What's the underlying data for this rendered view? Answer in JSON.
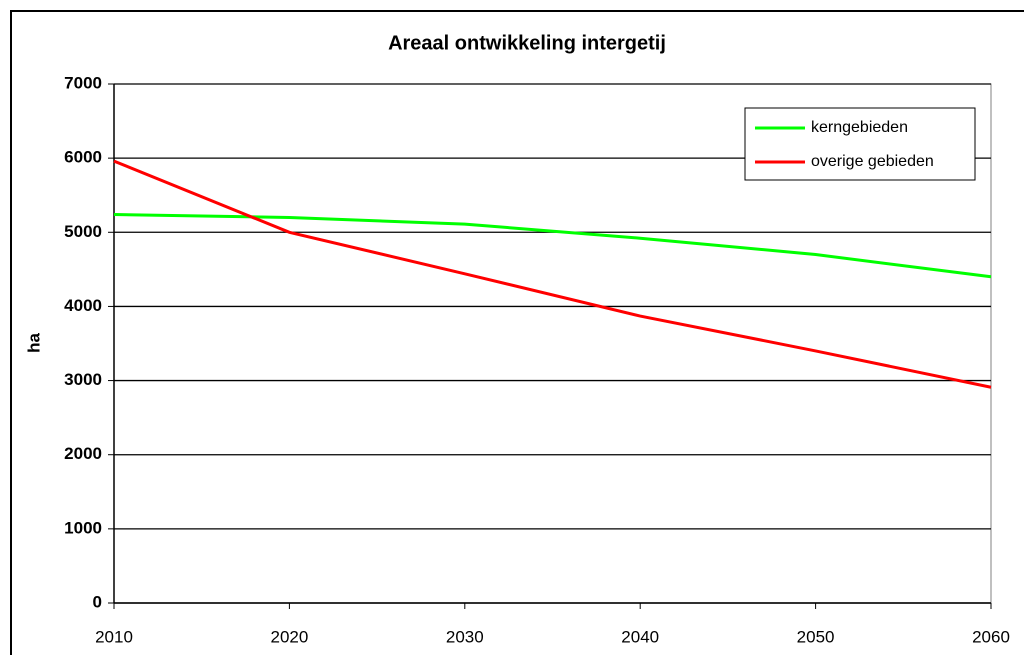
{
  "chart_data": {
    "type": "line",
    "title": "Areaal ontwikkeling intergetij",
    "ylabel": "ha",
    "x": [
      2010,
      2020,
      2030,
      2040,
      2050,
      2060
    ],
    "series": [
      {
        "name": "kerngebieden",
        "color": "#00ff00",
        "values": [
          5240,
          5200,
          5110,
          4920,
          4700,
          4400
        ]
      },
      {
        "name": "overige gebieden",
        "color": "#ff0000",
        "values": [
          5960,
          5000,
          4440,
          3870,
          3400,
          2910
        ]
      }
    ],
    "xlim": [
      2010,
      2060
    ],
    "xticks": [
      2010,
      2020,
      2030,
      2040,
      2050,
      2060
    ],
    "ylim": [
      0,
      7000
    ],
    "yticks": [
      0,
      1000,
      2000,
      3000,
      4000,
      5000,
      6000,
      7000
    ],
    "grid": true,
    "legend": "upper right"
  }
}
